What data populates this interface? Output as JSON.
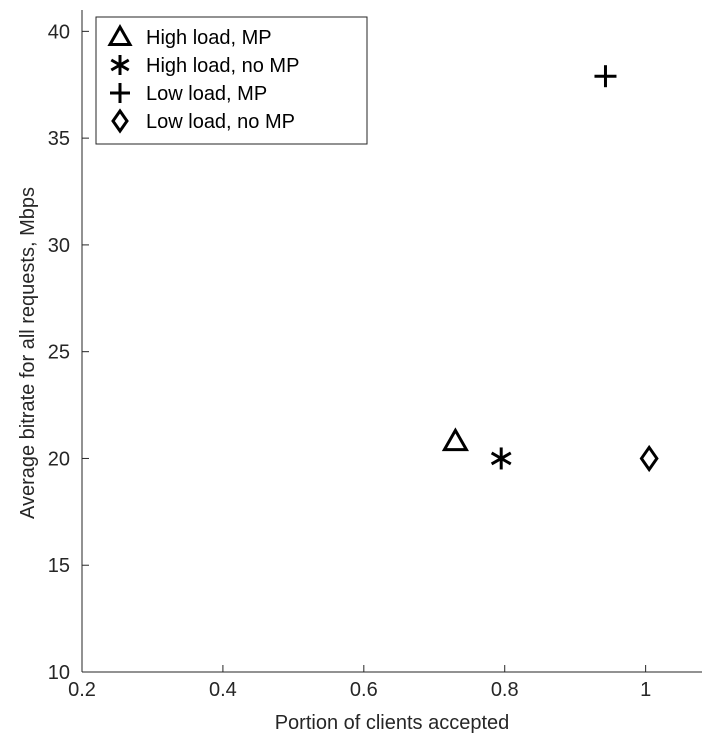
{
  "chart_data": {
    "type": "scatter",
    "xlabel": "Portion of clients accepted",
    "ylabel": "Average bitrate for all requests, Mbps",
    "xlim": [
      0.2,
      1.08
    ],
    "ylim": [
      10,
      41
    ],
    "xticks": [
      0.2,
      0.4,
      0.6,
      0.8,
      1
    ],
    "xtick_labels": [
      "0.2",
      "0.4",
      "0.6",
      "0.8",
      "1"
    ],
    "yticks": [
      10,
      15,
      20,
      25,
      30,
      35,
      40
    ],
    "ytick_labels": [
      "10",
      "15",
      "20",
      "25",
      "30",
      "35",
      "40"
    ],
    "grid": false,
    "legend_position": "top-left",
    "series": [
      {
        "name": "High load, MP",
        "marker": "triangle",
        "x": [
          0.73
        ],
        "y": [
          20.8
        ]
      },
      {
        "name": "High load, no MP",
        "marker": "asterisk",
        "x": [
          0.795
        ],
        "y": [
          20.0
        ]
      },
      {
        "name": "Low load, MP",
        "marker": "plus",
        "x": [
          0.943
        ],
        "y": [
          37.9
        ]
      },
      {
        "name": "Low load, no MP",
        "marker": "diamond",
        "x": [
          1.005
        ],
        "y": [
          20.0
        ]
      }
    ],
    "colors": {
      "axis": "#262626",
      "marker": "#000000",
      "background": "#ffffff"
    }
  }
}
